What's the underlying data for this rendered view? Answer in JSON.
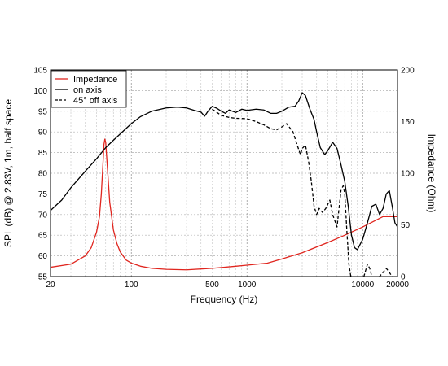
{
  "chart_data": {
    "type": "line",
    "title": "",
    "xlabel": "Frequency (Hz)",
    "ylabel": "SPL (dB) @ 2.83V, 1m, half space",
    "y2label": "Impedance (Ohm)",
    "x_scale": "log",
    "xlim": [
      20,
      20000
    ],
    "ylim": [
      55,
      105
    ],
    "y2lim": [
      0,
      200
    ],
    "grid": true,
    "legend_position": "top-left",
    "x_ticks": [
      {
        "value": 20,
        "label": "20"
      },
      {
        "value": 100,
        "label": "100"
      },
      {
        "value": 500,
        "label": "500"
      },
      {
        "value": 1000,
        "label": "1000"
      },
      {
        "value": 10000,
        "label": "10000"
      },
      {
        "value": 20000,
        "label": "20000"
      }
    ],
    "y_ticks": [
      {
        "value": 55,
        "label": "55"
      },
      {
        "value": 60,
        "label": "60"
      },
      {
        "value": 65,
        "label": "65"
      },
      {
        "value": 70,
        "label": "70"
      },
      {
        "value": 75,
        "label": "75"
      },
      {
        "value": 80,
        "label": "80"
      },
      {
        "value": 85,
        "label": "85"
      },
      {
        "value": 90,
        "label": "90"
      },
      {
        "value": 95,
        "label": "95"
      },
      {
        "value": 100,
        "label": "100"
      },
      {
        "value": 105,
        "label": "105"
      }
    ],
    "y2_ticks": [
      {
        "value": 0,
        "label": "0"
      },
      {
        "value": 50,
        "label": "50"
      },
      {
        "value": 100,
        "label": "100"
      },
      {
        "value": 150,
        "label": "150"
      },
      {
        "value": 200,
        "label": "200"
      }
    ],
    "series": [
      {
        "name": "Impedance",
        "axis": "right",
        "color": "#e0261f",
        "dash": "solid",
        "points": [
          [
            20,
            9
          ],
          [
            30,
            12
          ],
          [
            40,
            20
          ],
          [
            45,
            28
          ],
          [
            50,
            43
          ],
          [
            53,
            58
          ],
          [
            55,
            80
          ],
          [
            57,
            112
          ],
          [
            58,
            128
          ],
          [
            59,
            133
          ],
          [
            60,
            130
          ],
          [
            61,
            118
          ],
          [
            63,
            95
          ],
          [
            65,
            72
          ],
          [
            70,
            45
          ],
          [
            75,
            32
          ],
          [
            80,
            24
          ],
          [
            90,
            16
          ],
          [
            100,
            13
          ],
          [
            120,
            10
          ],
          [
            150,
            8
          ],
          [
            200,
            7
          ],
          [
            300,
            6.5
          ],
          [
            500,
            8
          ],
          [
            800,
            10
          ],
          [
            1000,
            11
          ],
          [
            1500,
            13
          ],
          [
            2000,
            17
          ],
          [
            3000,
            23
          ],
          [
            5000,
            33
          ],
          [
            7000,
            40
          ],
          [
            10000,
            48
          ],
          [
            15000,
            58
          ],
          [
            20000,
            58
          ]
        ]
      },
      {
        "name": "on axis",
        "axis": "left",
        "color": "#000000",
        "dash": "solid",
        "points": [
          [
            20,
            71
          ],
          [
            25,
            73.5
          ],
          [
            30,
            76.5
          ],
          [
            40,
            80.5
          ],
          [
            50,
            83.5
          ],
          [
            60,
            86.2
          ],
          [
            70,
            88
          ],
          [
            80,
            89.5
          ],
          [
            100,
            92
          ],
          [
            120,
            93.7
          ],
          [
            150,
            95
          ],
          [
            200,
            95.8
          ],
          [
            250,
            96
          ],
          [
            300,
            95.8
          ],
          [
            350,
            95.2
          ],
          [
            400,
            94.8
          ],
          [
            430,
            93.8
          ],
          [
            460,
            95
          ],
          [
            500,
            96.2
          ],
          [
            550,
            95.7
          ],
          [
            600,
            95
          ],
          [
            650,
            94.5
          ],
          [
            700,
            95.3
          ],
          [
            800,
            94.7
          ],
          [
            900,
            95.5
          ],
          [
            1000,
            95.2
          ],
          [
            1200,
            95.5
          ],
          [
            1400,
            95.3
          ],
          [
            1600,
            94.5
          ],
          [
            1800,
            94.5
          ],
          [
            2000,
            95
          ],
          [
            2300,
            96
          ],
          [
            2600,
            96.2
          ],
          [
            2800,
            97.5
          ],
          [
            3000,
            99.5
          ],
          [
            3200,
            98.8
          ],
          [
            3500,
            95.5
          ],
          [
            3800,
            93
          ],
          [
            4000,
            90
          ],
          [
            4300,
            86.2
          ],
          [
            4700,
            84.5
          ],
          [
            5000,
            85.5
          ],
          [
            5500,
            87.5
          ],
          [
            6000,
            86
          ],
          [
            6500,
            82
          ],
          [
            7000,
            78
          ],
          [
            7500,
            72
          ],
          [
            8000,
            65
          ],
          [
            8500,
            62
          ],
          [
            9000,
            61.5
          ],
          [
            10000,
            64
          ],
          [
            11000,
            68
          ],
          [
            12000,
            72
          ],
          [
            13000,
            72.5
          ],
          [
            14000,
            70
          ],
          [
            15000,
            71.5
          ],
          [
            16000,
            75
          ],
          [
            17000,
            75.8
          ],
          [
            18000,
            72
          ],
          [
            19000,
            68
          ],
          [
            20000,
            67
          ],
          [
            21000,
            77
          ]
        ]
      },
      {
        "name": "45° off axis",
        "axis": "left",
        "color": "#000000",
        "dash": "dashed",
        "points": [
          [
            500,
            95.5
          ],
          [
            600,
            94
          ],
          [
            700,
            93.5
          ],
          [
            800,
            93.3
          ],
          [
            1000,
            93.2
          ],
          [
            1200,
            92.5
          ],
          [
            1400,
            91.7
          ],
          [
            1600,
            90.8
          ],
          [
            1800,
            90.5
          ],
          [
            2000,
            91.2
          ],
          [
            2200,
            92
          ],
          [
            2500,
            90
          ],
          [
            2700,
            87
          ],
          [
            2900,
            84.5
          ],
          [
            3000,
            86
          ],
          [
            3200,
            86.8
          ],
          [
            3400,
            83
          ],
          [
            3600,
            78
          ],
          [
            3800,
            72
          ],
          [
            4000,
            70
          ],
          [
            4200,
            71.5
          ],
          [
            4500,
            70.5
          ],
          [
            4800,
            71.5
          ],
          [
            5200,
            73.5
          ],
          [
            5500,
            70
          ],
          [
            6000,
            67
          ],
          [
            6500,
            76
          ],
          [
            6800,
            77
          ],
          [
            7000,
            75
          ],
          [
            7300,
            66
          ],
          [
            7600,
            58
          ],
          [
            8000,
            54
          ],
          [
            9000,
            52
          ],
          [
            10000,
            54
          ],
          [
            11000,
            58
          ],
          [
            11500,
            57
          ],
          [
            12000,
            55
          ],
          [
            13000,
            54
          ],
          [
            15000,
            56
          ],
          [
            16000,
            57
          ],
          [
            17000,
            56
          ],
          [
            18000,
            55
          ],
          [
            19000,
            54.5
          ],
          [
            20000,
            55
          ]
        ]
      }
    ]
  }
}
